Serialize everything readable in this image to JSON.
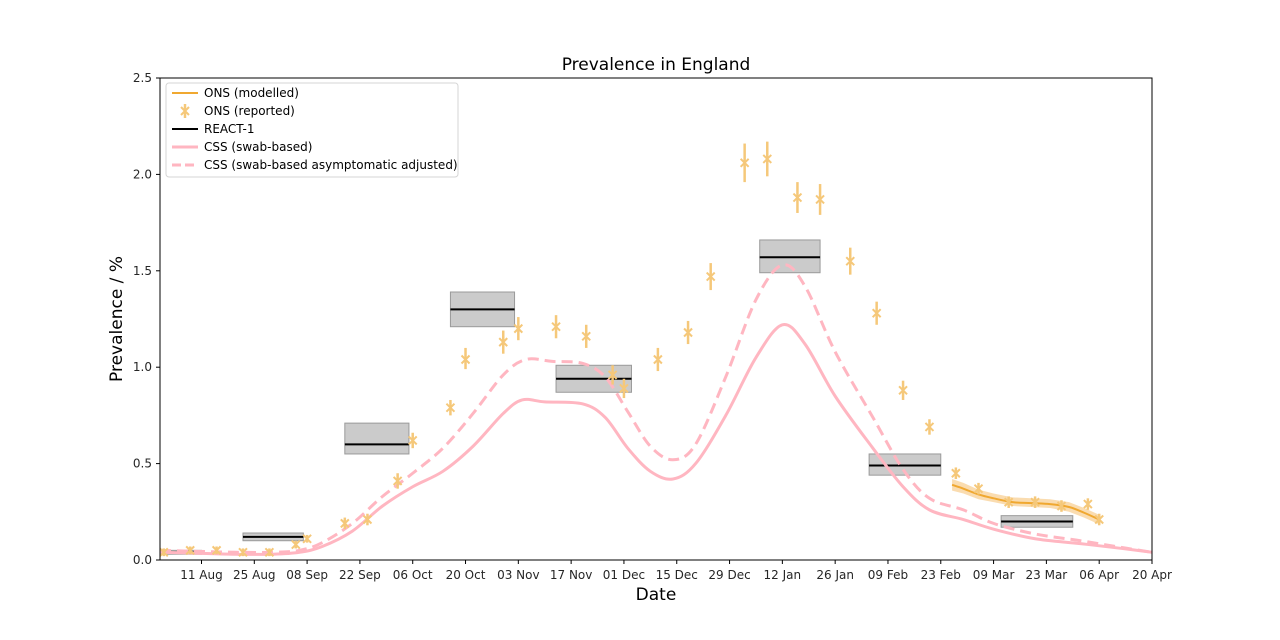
{
  "chart_data": {
    "type": "line",
    "title": "Prevalence in England",
    "xlabel": "Date",
    "ylabel": "Prevalence / %",
    "ylim": [
      0.0,
      2.5
    ],
    "xlim": [
      "2020-07-31",
      "2021-04-20"
    ],
    "x_ticks": [
      {
        "date": "2020-08-11",
        "label": "11 Aug"
      },
      {
        "date": "2020-08-25",
        "label": "25 Aug"
      },
      {
        "date": "2020-09-08",
        "label": "08 Sep"
      },
      {
        "date": "2020-09-22",
        "label": "22 Sep"
      },
      {
        "date": "2020-10-06",
        "label": "06 Oct"
      },
      {
        "date": "2020-10-20",
        "label": "20 Oct"
      },
      {
        "date": "2020-11-03",
        "label": "03 Nov"
      },
      {
        "date": "2020-11-17",
        "label": "17 Nov"
      },
      {
        "date": "2020-12-01",
        "label": "01 Dec"
      },
      {
        "date": "2020-12-15",
        "label": "15 Dec"
      },
      {
        "date": "2020-12-29",
        "label": "29 Dec"
      },
      {
        "date": "2021-01-12",
        "label": "12 Jan"
      },
      {
        "date": "2021-01-26",
        "label": "26 Jan"
      },
      {
        "date": "2021-02-09",
        "label": "09 Feb"
      },
      {
        "date": "2021-02-23",
        "label": "23 Feb"
      },
      {
        "date": "2021-03-09",
        "label": "09 Mar"
      },
      {
        "date": "2021-03-23",
        "label": "23 Mar"
      },
      {
        "date": "2021-04-06",
        "label": "06 Apr"
      },
      {
        "date": "2021-04-20",
        "label": "20 Apr"
      }
    ],
    "y_ticks": [
      "0.0",
      "0.5",
      "1.0",
      "1.5",
      "2.0",
      "2.5"
    ],
    "grid": false,
    "legend_position": "top-left",
    "series": [
      {
        "name": "ONS (modelled)",
        "style": "line",
        "color": "#f0a830",
        "band_color": "#f5c070",
        "points": [
          {
            "x": "2021-02-26",
            "y": 0.39,
            "lo": 0.36,
            "hi": 0.42
          },
          {
            "x": "2021-03-01",
            "y": 0.37,
            "lo": 0.345,
            "hi": 0.4
          },
          {
            "x": "2021-03-05",
            "y": 0.34,
            "lo": 0.315,
            "hi": 0.365
          },
          {
            "x": "2021-03-09",
            "y": 0.32,
            "lo": 0.3,
            "hi": 0.345
          },
          {
            "x": "2021-03-14",
            "y": 0.3,
            "lo": 0.28,
            "hi": 0.325
          },
          {
            "x": "2021-03-19",
            "y": 0.295,
            "lo": 0.275,
            "hi": 0.32
          },
          {
            "x": "2021-03-24",
            "y": 0.29,
            "lo": 0.27,
            "hi": 0.315
          },
          {
            "x": "2021-03-29",
            "y": 0.275,
            "lo": 0.25,
            "hi": 0.3
          },
          {
            "x": "2021-04-02",
            "y": 0.245,
            "lo": 0.22,
            "hi": 0.27
          },
          {
            "x": "2021-04-06",
            "y": 0.21,
            "lo": 0.185,
            "hi": 0.235
          }
        ]
      },
      {
        "name": "ONS (reported)",
        "style": "errorbar-x",
        "color": "#f5c87a",
        "points": [
          {
            "x": "2020-08-01",
            "y": 0.04,
            "lo": 0.02,
            "hi": 0.06
          },
          {
            "x": "2020-08-08",
            "y": 0.05,
            "lo": 0.03,
            "hi": 0.07
          },
          {
            "x": "2020-08-15",
            "y": 0.05,
            "lo": 0.03,
            "hi": 0.07
          },
          {
            "x": "2020-08-22",
            "y": 0.04,
            "lo": 0.02,
            "hi": 0.06
          },
          {
            "x": "2020-08-29",
            "y": 0.04,
            "lo": 0.02,
            "hi": 0.06
          },
          {
            "x": "2020-09-05",
            "y": 0.08,
            "lo": 0.06,
            "hi": 0.1
          },
          {
            "x": "2020-09-08",
            "y": 0.11,
            "lo": 0.09,
            "hi": 0.13
          },
          {
            "x": "2020-09-18",
            "y": 0.19,
            "lo": 0.16,
            "hi": 0.22
          },
          {
            "x": "2020-09-24",
            "y": 0.21,
            "lo": 0.18,
            "hi": 0.24
          },
          {
            "x": "2020-10-02",
            "y": 0.41,
            "lo": 0.37,
            "hi": 0.45
          },
          {
            "x": "2020-10-06",
            "y": 0.62,
            "lo": 0.58,
            "hi": 0.66
          },
          {
            "x": "2020-10-16",
            "y": 0.79,
            "lo": 0.75,
            "hi": 0.83
          },
          {
            "x": "2020-10-20",
            "y": 1.04,
            "lo": 0.99,
            "hi": 1.1
          },
          {
            "x": "2020-10-30",
            "y": 1.13,
            "lo": 1.07,
            "hi": 1.19
          },
          {
            "x": "2020-11-03",
            "y": 1.2,
            "lo": 1.14,
            "hi": 1.26
          },
          {
            "x": "2020-11-13",
            "y": 1.21,
            "lo": 1.15,
            "hi": 1.27
          },
          {
            "x": "2020-11-21",
            "y": 1.16,
            "lo": 1.1,
            "hi": 1.22
          },
          {
            "x": "2020-11-28",
            "y": 0.96,
            "lo": 0.91,
            "hi": 1.01
          },
          {
            "x": "2020-12-01",
            "y": 0.89,
            "lo": 0.84,
            "hi": 0.94
          },
          {
            "x": "2020-12-10",
            "y": 1.04,
            "lo": 0.98,
            "hi": 1.1
          },
          {
            "x": "2020-12-18",
            "y": 1.18,
            "lo": 1.12,
            "hi": 1.24
          },
          {
            "x": "2020-12-24",
            "y": 1.47,
            "lo": 1.4,
            "hi": 1.54
          },
          {
            "x": "2021-01-02",
            "y": 2.06,
            "lo": 1.96,
            "hi": 2.16
          },
          {
            "x": "2021-01-08",
            "y": 2.08,
            "lo": 1.99,
            "hi": 2.17
          },
          {
            "x": "2021-01-16",
            "y": 1.88,
            "lo": 1.8,
            "hi": 1.96
          },
          {
            "x": "2021-01-22",
            "y": 1.87,
            "lo": 1.79,
            "hi": 1.95
          },
          {
            "x": "2021-01-30",
            "y": 1.55,
            "lo": 1.48,
            "hi": 1.62
          },
          {
            "x": "2021-02-06",
            "y": 1.28,
            "lo": 1.22,
            "hi": 1.34
          },
          {
            "x": "2021-02-13",
            "y": 0.88,
            "lo": 0.83,
            "hi": 0.93
          },
          {
            "x": "2021-02-20",
            "y": 0.69,
            "lo": 0.65,
            "hi": 0.73
          },
          {
            "x": "2021-02-27",
            "y": 0.45,
            "lo": 0.42,
            "hi": 0.48
          },
          {
            "x": "2021-03-05",
            "y": 0.37,
            "lo": 0.34,
            "hi": 0.4
          },
          {
            "x": "2021-03-13",
            "y": 0.3,
            "lo": 0.27,
            "hi": 0.33
          },
          {
            "x": "2021-03-20",
            "y": 0.3,
            "lo": 0.27,
            "hi": 0.33
          },
          {
            "x": "2021-03-27",
            "y": 0.28,
            "lo": 0.25,
            "hi": 0.31
          },
          {
            "x": "2021-04-03",
            "y": 0.29,
            "lo": 0.26,
            "hi": 0.32
          },
          {
            "x": "2021-04-06",
            "y": 0.21,
            "lo": 0.18,
            "hi": 0.24
          }
        ]
      },
      {
        "name": "REACT-1",
        "style": "boxes",
        "color": "#000000",
        "box_color": "#c8c8c8",
        "boxes": [
          {
            "start": "2020-07-31",
            "end": "2020-08-11",
            "y": 0.04,
            "lo": 0.03,
            "hi": 0.05
          },
          {
            "start": "2020-08-22",
            "end": "2020-09-07",
            "y": 0.12,
            "lo": 0.1,
            "hi": 0.14
          },
          {
            "start": "2020-09-18",
            "end": "2020-10-05",
            "y": 0.6,
            "lo": 0.55,
            "hi": 0.71
          },
          {
            "start": "2020-10-16",
            "end": "2020-11-02",
            "y": 1.3,
            "lo": 1.21,
            "hi": 1.39
          },
          {
            "start": "2020-11-13",
            "end": "2020-12-03",
            "y": 0.94,
            "lo": 0.87,
            "hi": 1.01
          },
          {
            "start": "2021-01-06",
            "end": "2021-01-22",
            "y": 1.57,
            "lo": 1.49,
            "hi": 1.66
          },
          {
            "start": "2021-02-04",
            "end": "2021-02-23",
            "y": 0.49,
            "lo": 0.44,
            "hi": 0.55
          },
          {
            "start": "2021-03-11",
            "end": "2021-03-30",
            "y": 0.2,
            "lo": 0.17,
            "hi": 0.23
          }
        ]
      },
      {
        "name": "CSS (swab-based)",
        "style": "line",
        "color": "#ffb6c1",
        "points": [
          {
            "x": "2020-07-31",
            "y": 0.04
          },
          {
            "x": "2020-08-10",
            "y": 0.035
          },
          {
            "x": "2020-08-20",
            "y": 0.03
          },
          {
            "x": "2020-08-30",
            "y": 0.03
          },
          {
            "x": "2020-09-06",
            "y": 0.04
          },
          {
            "x": "2020-09-12",
            "y": 0.07
          },
          {
            "x": "2020-09-20",
            "y": 0.15
          },
          {
            "x": "2020-09-28",
            "y": 0.28
          },
          {
            "x": "2020-10-06",
            "y": 0.38
          },
          {
            "x": "2020-10-14",
            "y": 0.46
          },
          {
            "x": "2020-10-22",
            "y": 0.59
          },
          {
            "x": "2020-10-30",
            "y": 0.76
          },
          {
            "x": "2020-11-04",
            "y": 0.83
          },
          {
            "x": "2020-11-10",
            "y": 0.82
          },
          {
            "x": "2020-11-20",
            "y": 0.81
          },
          {
            "x": "2020-11-26",
            "y": 0.74
          },
          {
            "x": "2020-12-02",
            "y": 0.58
          },
          {
            "x": "2020-12-08",
            "y": 0.46
          },
          {
            "x": "2020-12-14",
            "y": 0.42
          },
          {
            "x": "2020-12-20",
            "y": 0.5
          },
          {
            "x": "2020-12-28",
            "y": 0.75
          },
          {
            "x": "2021-01-05",
            "y": 1.05
          },
          {
            "x": "2021-01-12",
            "y": 1.22
          },
          {
            "x": "2021-01-18",
            "y": 1.12
          },
          {
            "x": "2021-01-26",
            "y": 0.85
          },
          {
            "x": "2021-02-05",
            "y": 0.58
          },
          {
            "x": "2021-02-13",
            "y": 0.38
          },
          {
            "x": "2021-02-20",
            "y": 0.26
          },
          {
            "x": "2021-03-01",
            "y": 0.21
          },
          {
            "x": "2021-03-09",
            "y": 0.16
          },
          {
            "x": "2021-03-20",
            "y": 0.11
          },
          {
            "x": "2021-04-01",
            "y": 0.085
          },
          {
            "x": "2021-04-12",
            "y": 0.06
          },
          {
            "x": "2021-04-20",
            "y": 0.04
          }
        ]
      },
      {
        "name": "CSS (swab-based asymptomatic adjusted)",
        "style": "dashed",
        "color": "#ffb6c1",
        "points": [
          {
            "x": "2020-07-31",
            "y": 0.05
          },
          {
            "x": "2020-08-10",
            "y": 0.045
          },
          {
            "x": "2020-08-20",
            "y": 0.04
          },
          {
            "x": "2020-08-30",
            "y": 0.04
          },
          {
            "x": "2020-09-06",
            "y": 0.05
          },
          {
            "x": "2020-09-12",
            "y": 0.09
          },
          {
            "x": "2020-09-20",
            "y": 0.19
          },
          {
            "x": "2020-09-28",
            "y": 0.33
          },
          {
            "x": "2020-10-06",
            "y": 0.45
          },
          {
            "x": "2020-10-14",
            "y": 0.58
          },
          {
            "x": "2020-10-22",
            "y": 0.76
          },
          {
            "x": "2020-10-30",
            "y": 0.96
          },
          {
            "x": "2020-11-05",
            "y": 1.04
          },
          {
            "x": "2020-11-12",
            "y": 1.03
          },
          {
            "x": "2020-11-20",
            "y": 1.02
          },
          {
            "x": "2020-11-26",
            "y": 0.95
          },
          {
            "x": "2020-12-02",
            "y": 0.77
          },
          {
            "x": "2020-12-08",
            "y": 0.59
          },
          {
            "x": "2020-12-14",
            "y": 0.52
          },
          {
            "x": "2020-12-20",
            "y": 0.6
          },
          {
            "x": "2020-12-28",
            "y": 0.95
          },
          {
            "x": "2021-01-05",
            "y": 1.35
          },
          {
            "x": "2021-01-12",
            "y": 1.53
          },
          {
            "x": "2021-01-18",
            "y": 1.42
          },
          {
            "x": "2021-01-26",
            "y": 1.08
          },
          {
            "x": "2021-02-05",
            "y": 0.74
          },
          {
            "x": "2021-02-13",
            "y": 0.47
          },
          {
            "x": "2021-02-20",
            "y": 0.32
          },
          {
            "x": "2021-03-01",
            "y": 0.26
          },
          {
            "x": "2021-03-09",
            "y": 0.19
          },
          {
            "x": "2021-03-20",
            "y": 0.135
          },
          {
            "x": "2021-04-01",
            "y": 0.1
          },
          {
            "x": "2021-04-12",
            "y": 0.065
          },
          {
            "x": "2021-04-20",
            "y": 0.04
          }
        ]
      }
    ]
  }
}
